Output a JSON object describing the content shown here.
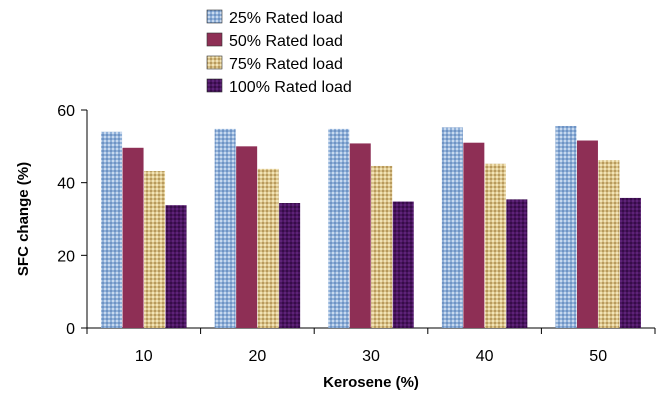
{
  "chart_data": {
    "type": "bar",
    "categories": [
      "10",
      "20",
      "30",
      "40",
      "50"
    ],
    "series": [
      {
        "name": "25% Rated load",
        "values": [
          54,
          54.8,
          54.8,
          55.2,
          55.6
        ]
      },
      {
        "name": "50% Rated load",
        "values": [
          49.6,
          50,
          50.8,
          51,
          51.6
        ]
      },
      {
        "name": "75% Rated load",
        "values": [
          43.2,
          43.8,
          44.6,
          45.2,
          46.2
        ]
      },
      {
        "name": "100% Rated load",
        "values": [
          33.8,
          34.4,
          34.8,
          35.4,
          35.8
        ]
      }
    ],
    "xlabel": "Kerosene (%)",
    "ylabel": "SFC change (%)",
    "ylim": [
      0,
      60
    ],
    "yticks": [
      0,
      20,
      40,
      60
    ],
    "grid": false,
    "legend_position": "top",
    "colors": [
      "#8fb0d8",
      "#8e2f55",
      "#d9c28a",
      "#4a1560"
    ]
  }
}
